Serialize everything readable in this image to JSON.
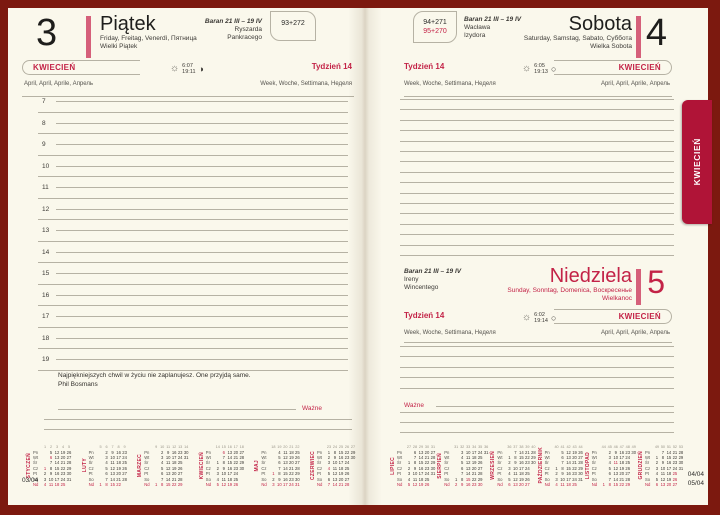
{
  "colors": {
    "accent": "#c32347",
    "bar": "#d5607a",
    "maroon": "#7c190f",
    "tab": "#b01437",
    "paper": "#faf8ec",
    "line": "#b6b2a4",
    "text": "#2a2a28",
    "muted": "#55534e"
  },
  "tab_label": "KWIECIEŃ",
  "hours": {
    "start": 7,
    "end": 19
  },
  "left_page": {
    "day_number": "3",
    "day_name": "Piątek",
    "day_langs": "Friday, Freitag, Venerdì, Пятница",
    "day_holiday": "Wielki Piątek",
    "zodiac": "Baran 21 III – 19 IV",
    "name_day_1": "Ryszarda",
    "name_day_2": "Pankracego",
    "day_counter": "93+272",
    "month_label": "KWIECIEŃ",
    "month_langs": "April, April, Aprile, Апрель",
    "week_label": "Tydzień 14",
    "week_langs": "Week, Woche, Settimana, Неделя",
    "sunrise": "6:07",
    "sunset": "19:11",
    "sun_icon": "☼",
    "moon_icon": "◑",
    "quote": "Najpiękniejszych chwil w życiu nie zaplanujesz. One przyjdą same.",
    "quote_author": "Phil Bosmans",
    "important_label": "Ważne",
    "page_code": "03/04"
  },
  "right_page": {
    "saturday": {
      "day_number": "4",
      "day_name": "Sobota",
      "day_langs": "Saturday, Samstag, Sabato, Суббота",
      "day_holiday": "Wielka Sobota",
      "zodiac": "Baran 21 III – 19 IV",
      "name_day_1": "Wacława",
      "name_day_2": "Izydora",
      "day_counter_1": "94+271",
      "day_counter_2": "95+270",
      "week_label": "Tydzień 14",
      "week_langs": "Week, Woche, Settimana, Неделя",
      "month_label": "KWIECIEŃ",
      "month_langs": "April, April, Aprile, Апрель",
      "sunrise": "6:05",
      "sunset": "19:13",
      "sun_icon": "☼",
      "moon_icon": "○"
    },
    "sunday": {
      "day_number": "5",
      "day_name": "Niedziela",
      "day_langs": "Sunday, Sonntag, Domenica, Воскресенье",
      "day_holiday": "Wielkanoc",
      "zodiac": "Baran 21 III – 19 IV",
      "name_day_1": "Ireny",
      "name_day_2": "Wincentego",
      "week_label": "Tydzień 14",
      "week_langs": "Week, Woche, Settimana, Неделя",
      "month_label": "KWIECIEŃ",
      "month_langs": "April, April, Aprile, Апрель",
      "sunrise": "6:02",
      "sunset": "19:14",
      "sun_icon": "☼",
      "moon_icon": "○"
    },
    "important_label": "Ważne",
    "page_code_1": "04/04",
    "page_code_2": "05/04"
  },
  "mini_calendars": {
    "day_labels": [
      "Pn",
      "Wt",
      "Śr",
      "Cz",
      "Pt",
      "So",
      "Nd"
    ],
    "left_months": [
      {
        "name": "STYCZEŃ",
        "start": 3,
        "days": 31,
        "first_week": 1
      },
      {
        "name": "LUTY",
        "start": 6,
        "days": 28,
        "first_week": 5
      },
      {
        "name": "MARZEC",
        "start": 6,
        "days": 31,
        "first_week": 9
      },
      {
        "name": "KWIECIEŃ",
        "start": 2,
        "days": 30,
        "first_week": 14
      },
      {
        "name": "MAJ",
        "start": 4,
        "days": 31,
        "first_week": 18
      },
      {
        "name": "CZERWIEC",
        "start": 0,
        "days": 30,
        "first_week": 23
      }
    ],
    "right_months": [
      {
        "name": "LIPIEC",
        "start": 2,
        "days": 31,
        "first_week": 27
      },
      {
        "name": "SIERPIEŃ",
        "start": 5,
        "days": 31,
        "first_week": 31
      },
      {
        "name": "WRZESIEŃ",
        "start": 1,
        "days": 30,
        "first_week": 36
      },
      {
        "name": "PAŹDZIERNIK",
        "start": 3,
        "days": 31,
        "first_week": 40
      },
      {
        "name": "LISTOPAD",
        "start": 6,
        "days": 30,
        "first_week": 44
      },
      {
        "name": "GRUDZIEŃ",
        "start": 1,
        "days": 31,
        "first_week": 49
      }
    ],
    "holidays": {
      "STYCZEŃ": [
        1,
        6
      ],
      "KWIECIEŃ": [
        5,
        6
      ],
      "MAJ": [
        1,
        3
      ],
      "CZERWIEC": [
        4
      ],
      "SIERPIEŃ": [
        15
      ],
      "LISTOPAD": [
        1,
        11
      ],
      "GRUDZIEŃ": [
        25,
        26
      ]
    }
  }
}
